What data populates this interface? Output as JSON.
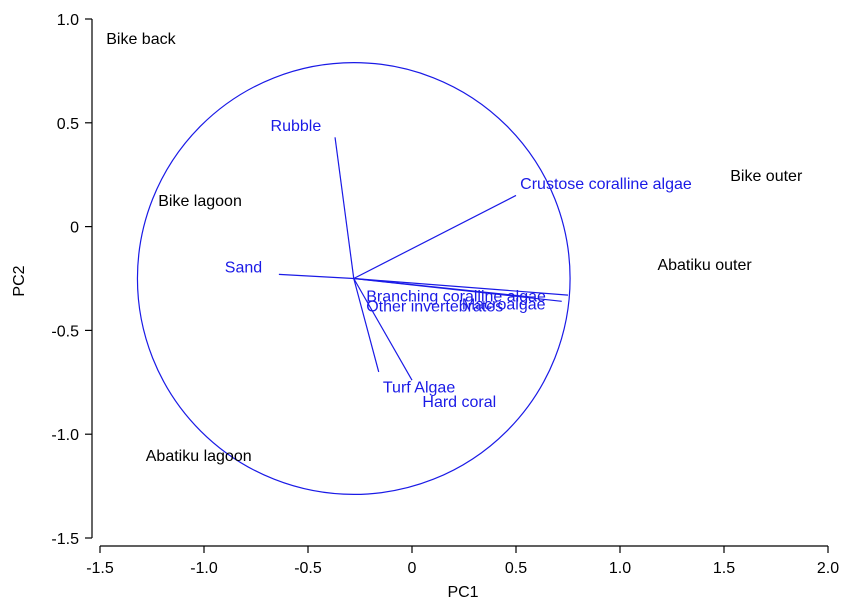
{
  "chart_data": {
    "type": "scatter",
    "title": "",
    "xlabel": "PC1",
    "ylabel": "PC2",
    "xlim": [
      -1.5,
      2.0
    ],
    "ylim": [
      -1.5,
      1.0
    ],
    "xticks": [
      -1.5,
      -1.0,
      -0.5,
      0,
      0.5,
      1.0,
      1.5,
      2.0
    ],
    "xtick_labels": [
      "-1.5",
      "-1.0",
      "-0.5",
      "0",
      "0.5",
      "1.0",
      "1.5",
      "2.0"
    ],
    "yticks": [
      -1.5,
      -1.0,
      -0.5,
      0,
      0.5,
      1.0
    ],
    "ytick_labels": [
      "-1.5",
      "-1.0",
      "-0.5",
      "0",
      "0.5",
      "1.0"
    ],
    "grid": false,
    "correlation_circle": {
      "center": [
        -0.28,
        -0.25
      ],
      "radius": 1.04,
      "color": "#1a1ae6"
    },
    "sites": [
      {
        "label": "Bike back",
        "x": -1.47,
        "y": 0.88
      },
      {
        "label": "Bike lagoon",
        "x": -1.22,
        "y": 0.1
      },
      {
        "label": "Bike outer",
        "x": 1.53,
        "y": 0.22
      },
      {
        "label": "Abatiku outer",
        "x": 1.18,
        "y": -0.21
      },
      {
        "label": "Abatiku lagoon",
        "x": -1.28,
        "y": -1.13
      }
    ],
    "vectors": [
      {
        "label": "Rubble",
        "x": -0.37,
        "y": 0.43,
        "label_x": -0.68,
        "label_y": 0.46
      },
      {
        "label": "Crustose coralline algae",
        "x": 0.5,
        "y": 0.15,
        "label_x": 0.52,
        "label_y": 0.18
      },
      {
        "label": "Sand",
        "x": -0.64,
        "y": -0.23,
        "label_x": -0.9,
        "label_y": -0.22
      },
      {
        "label": "Branching coralline algae",
        "x": 0.75,
        "y": -0.33,
        "label_x": -0.22,
        "label_y": -0.36
      },
      {
        "label": "Other invertebrates",
        "x": 0.58,
        "y": -0.34,
        "label_x": -0.22,
        "label_y": -0.41
      },
      {
        "label": "Macroalgae",
        "x": 0.72,
        "y": -0.36,
        "label_x": 0.24,
        "label_y": -0.4
      },
      {
        "label": "Turf Algae",
        "x": -0.16,
        "y": -0.7,
        "label_x": -0.14,
        "label_y": -0.8
      },
      {
        "label": "Hard coral",
        "x": 0.0,
        "y": -0.74,
        "label_x": 0.05,
        "label_y": -0.87
      }
    ],
    "colors": {
      "sites": "#000000",
      "vectors": "#1a1ae6"
    }
  }
}
